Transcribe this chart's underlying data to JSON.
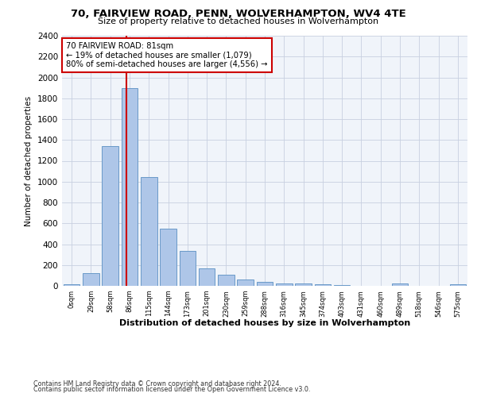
{
  "title1": "70, FAIRVIEW ROAD, PENN, WOLVERHAMPTON, WV4 4TE",
  "title2": "Size of property relative to detached houses in Wolverhampton",
  "xlabel": "Distribution of detached houses by size in Wolverhampton",
  "ylabel": "Number of detached properties",
  "footer1": "Contains HM Land Registry data © Crown copyright and database right 2024.",
  "footer2": "Contains public sector information licensed under the Open Government Licence v3.0.",
  "annotation_line1": "70 FAIRVIEW ROAD: 81sqm",
  "annotation_line2": "← 19% of detached houses are smaller (1,079)",
  "annotation_line3": "80% of semi-detached houses are larger (4,556) →",
  "bar_labels": [
    "0sqm",
    "29sqm",
    "58sqm",
    "86sqm",
    "115sqm",
    "144sqm",
    "173sqm",
    "201sqm",
    "230sqm",
    "259sqm",
    "288sqm",
    "316sqm",
    "345sqm",
    "374sqm",
    "403sqm",
    "431sqm",
    "460sqm",
    "489sqm",
    "518sqm",
    "546sqm",
    "575sqm"
  ],
  "bar_values": [
    15,
    125,
    1340,
    1900,
    1045,
    545,
    335,
    165,
    110,
    60,
    35,
    25,
    25,
    15,
    10,
    0,
    0,
    20,
    0,
    0,
    15
  ],
  "bar_color": "#aec6e8",
  "bar_edge_color": "#5a8fc2",
  "ylim": [
    0,
    2400
  ],
  "yticks": [
    0,
    200,
    400,
    600,
    800,
    1000,
    1200,
    1400,
    1600,
    1800,
    2000,
    2200,
    2400
  ],
  "vline_x": 2.85,
  "vline_color": "#cc0000",
  "bg_color": "#f0f4fa",
  "grid_color": "#c8d0e0",
  "annotation_box_color": "#ffffff",
  "annotation_box_edge": "#cc0000"
}
